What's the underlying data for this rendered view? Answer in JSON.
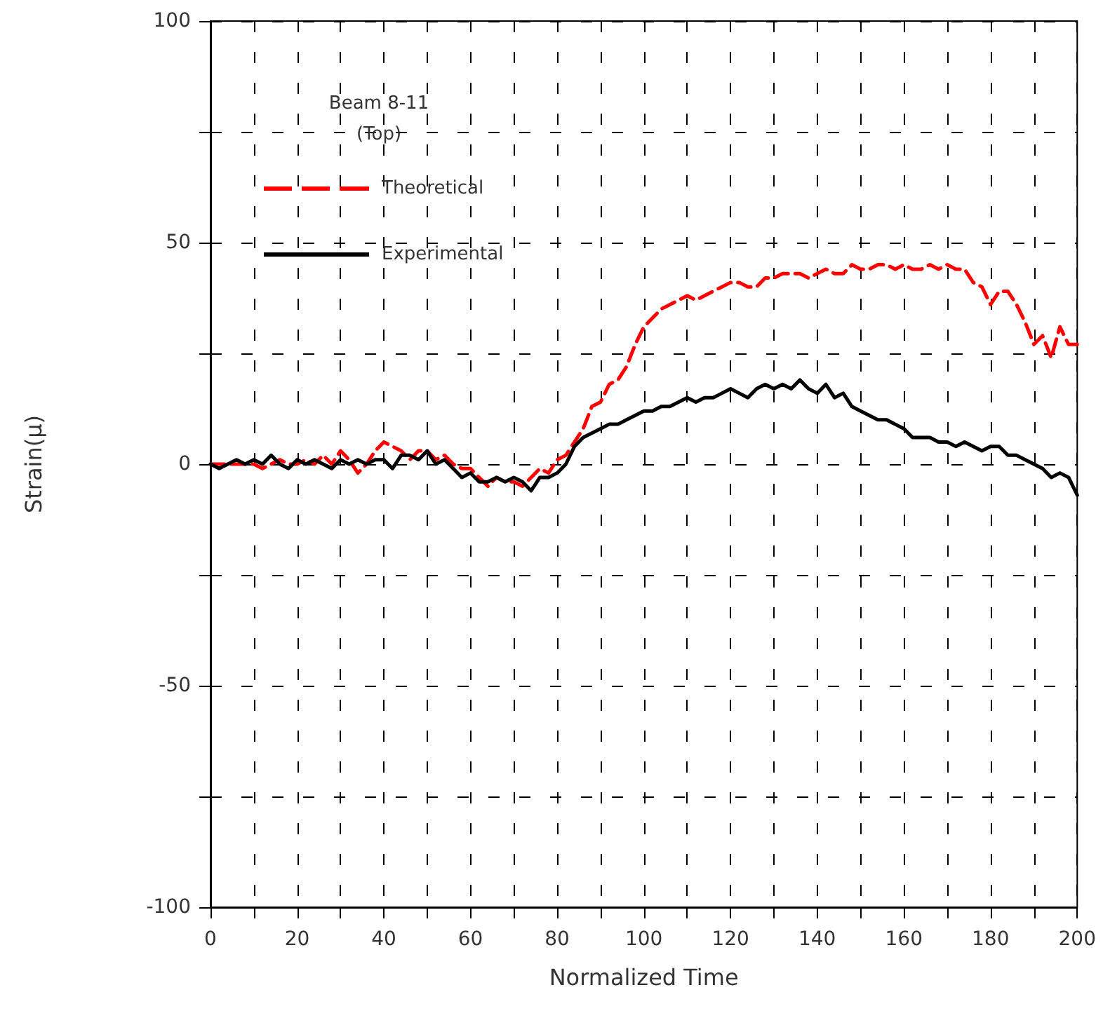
{
  "chart_data": {
    "type": "line",
    "xlabel": "Normalized Time",
    "ylabel": "Strain(μ)",
    "annotations": [
      "Beam 8-11\n(Top)"
    ],
    "xlim": [
      0,
      200
    ],
    "ylim": [
      -100,
      100
    ],
    "xticks": [
      0,
      {
        "value": 10,
        "label": null
      },
      20,
      {
        "value": 30,
        "label": null
      },
      40,
      {
        "value": 50,
        "label": null
      },
      60,
      {
        "value": 70,
        "label": null
      },
      80,
      {
        "value": 90,
        "label": null
      },
      100,
      {
        "value": 110,
        "label": null
      },
      120,
      {
        "value": 130,
        "label": null
      },
      140,
      {
        "value": 150,
        "label": null
      },
      160,
      {
        "value": 170,
        "label": null
      },
      180,
      {
        "value": 190,
        "label": null
      },
      200
    ],
    "yticks": [
      -100,
      {
        "value": -75,
        "label": null
      },
      -50,
      {
        "value": -25,
        "label": null
      },
      0,
      {
        "value": 25,
        "label": null
      },
      50,
      {
        "value": 75,
        "label": null
      },
      100
    ],
    "grid": true,
    "legend": "top left",
    "marker": "none",
    "x": [
      0,
      2,
      4,
      6,
      8,
      10,
      12,
      14,
      16,
      18,
      20,
      22,
      24,
      26,
      28,
      30,
      32,
      34,
      36,
      38,
      40,
      42,
      44,
      46,
      48,
      50,
      52,
      54,
      56,
      58,
      60,
      62,
      64,
      66,
      68,
      70,
      72,
      74,
      76,
      78,
      80,
      82,
      84,
      86,
      88,
      90,
      92,
      94,
      96,
      98,
      100,
      102,
      104,
      106,
      108,
      110,
      112,
      114,
      116,
      118,
      120,
      122,
      124,
      126,
      128,
      130,
      132,
      134,
      136,
      138,
      140,
      142,
      144,
      146,
      148,
      150,
      152,
      154,
      156,
      158,
      160,
      162,
      164,
      166,
      168,
      170,
      172,
      174,
      176,
      178,
      180,
      182,
      184,
      186,
      188,
      190,
      192,
      194,
      196,
      198,
      200
    ],
    "series": [
      {
        "name": "Theoretical",
        "color": "#ff0000",
        "line_style": "dashed",
        "values": [
          0,
          0,
          0,
          0,
          0,
          0,
          -1,
          0,
          1,
          0,
          0,
          1,
          0,
          2,
          0,
          3,
          1,
          -2,
          0,
          3,
          5,
          4,
          3,
          1,
          3,
          3,
          1,
          2,
          0,
          -1,
          -1,
          -3,
          -5,
          -3,
          -4,
          -4,
          -5,
          -3,
          -1,
          -2,
          1,
          2,
          5,
          8,
          13,
          14,
          18,
          19,
          22,
          27,
          31,
          33,
          35,
          36,
          37,
          38,
          37,
          38,
          39,
          40,
          41,
          41,
          40,
          40,
          42,
          42,
          43,
          43,
          43,
          42,
          43,
          44,
          43,
          43,
          45,
          44,
          44,
          45,
          45,
          44,
          45,
          44,
          44,
          45,
          44,
          45,
          44,
          44,
          41,
          40,
          36,
          39,
          39,
          36,
          32,
          27,
          29,
          24,
          31,
          27,
          27
        ]
      },
      {
        "name": "Experimental",
        "color": "#000000",
        "line_style": "solid",
        "values": [
          0,
          -1,
          0,
          1,
          0,
          1,
          0,
          2,
          0,
          -1,
          1,
          0,
          1,
          0,
          -1,
          1,
          0,
          1,
          0,
          1,
          1,
          -1,
          2,
          2,
          1,
          3,
          0,
          1,
          -1,
          -3,
          -2,
          -4,
          -4,
          -3,
          -4,
          -3,
          -4,
          -6,
          -3,
          -3,
          -2,
          0,
          4,
          6,
          7,
          8,
          9,
          9,
          10,
          11,
          12,
          12,
          13,
          13,
          14,
          15,
          14,
          15,
          15,
          16,
          17,
          16,
          15,
          17,
          18,
          17,
          18,
          17,
          19,
          17,
          16,
          18,
          15,
          16,
          13,
          12,
          11,
          10,
          10,
          9,
          8,
          6,
          6,
          6,
          5,
          5,
          4,
          5,
          4,
          3,
          4,
          4,
          2,
          2,
          1,
          0,
          -1,
          -3,
          -2,
          -3,
          -7
        ]
      }
    ]
  }
}
